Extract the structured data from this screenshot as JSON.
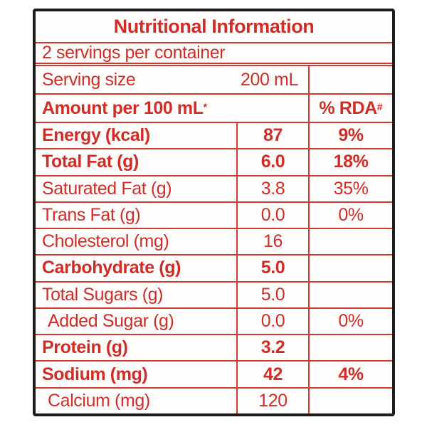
{
  "nutrition_label": {
    "title": "Nutritional Information",
    "servings_per_container": "2 servings per container",
    "serving_size": {
      "label": "Serving size",
      "value": "200 mL"
    },
    "columns": {
      "amount_header": "Amount per 100 mL",
      "amount_header_note": "*",
      "rda_header": "% RDA",
      "rda_header_note": "#"
    },
    "rows": [
      {
        "nutrient": "Energy (kcal)",
        "amount": "87",
        "rda": "9%"
      },
      {
        "nutrient": "Total Fat (g)",
        "amount": "6.0",
        "rda": "18%"
      },
      {
        "nutrient": "Saturated Fat (g)",
        "amount": "3.8",
        "rda": "35%"
      },
      {
        "nutrient": "Trans Fat (g)",
        "amount": "0.0",
        "rda": "0%"
      },
      {
        "nutrient": "Cholesterol (mg)",
        "amount": "16",
        "rda": ""
      },
      {
        "nutrient": "Carbohydrate (g)",
        "amount": "5.0",
        "rda": ""
      },
      {
        "nutrient": "Total Sugars (g)",
        "amount": "5.0",
        "rda": ""
      },
      {
        "nutrient": "Added Sugar (g)",
        "amount": "0.0",
        "rda": "0%"
      },
      {
        "nutrient": "Protein (g)",
        "amount": "3.2",
        "rda": ""
      },
      {
        "nutrient": "Sodium (mg)",
        "amount": "42",
        "rda": "4%"
      },
      {
        "nutrient": "Calcium (mg)",
        "amount": "120",
        "rda": ""
      }
    ],
    "colors": {
      "accent_red": "#cf2e28",
      "line_red": "#cd3b32",
      "border_black": "#1d1b1b",
      "background": "#ffffff"
    }
  }
}
